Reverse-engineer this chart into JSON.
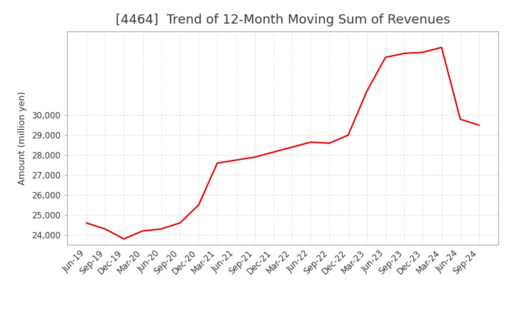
{
  "title": "[4464]  Trend of 12-Month Moving Sum of Revenues",
  "ylabel": "Amount (million yen)",
  "background_color": "#ffffff",
  "plot_bg_color": "#ffffff",
  "grid_color": "#c8c8c8",
  "line_color": "#dd0000",
  "x_labels": [
    "Jun-19",
    "Sep-19",
    "Dec-19",
    "Mar-20",
    "Jun-20",
    "Sep-20",
    "Dec-20",
    "Mar-21",
    "Jun-21",
    "Sep-21",
    "Dec-21",
    "Mar-22",
    "Jun-22",
    "Sep-22",
    "Dec-22",
    "Mar-23",
    "Jun-23",
    "Sep-23",
    "Dec-23",
    "Mar-24",
    "Jun-24",
    "Sep-24"
  ],
  "values": [
    24600,
    24300,
    23800,
    24200,
    24300,
    24600,
    25500,
    27600,
    27750,
    27900,
    28150,
    28400,
    28650,
    28600,
    29000,
    31200,
    32900,
    33100,
    33150,
    33400,
    29800,
    29500
  ],
  "ylim": [
    23500,
    34200
  ],
  "yticks": [
    24000,
    25000,
    26000,
    27000,
    28000,
    29000,
    30000
  ],
  "title_fontsize": 13,
  "tick_fontsize": 8.5,
  "label_fontsize": 9
}
